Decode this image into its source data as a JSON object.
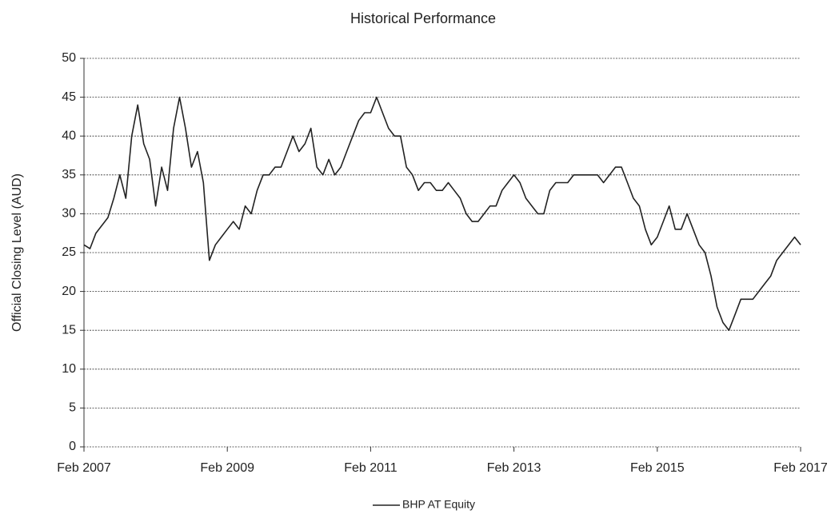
{
  "chart_data": {
    "type": "line",
    "title": "Historical Performance",
    "y_label": "Official Closing Level (AUD)",
    "x": [
      "2007-02",
      "2007-03",
      "2007-04",
      "2007-05",
      "2007-06",
      "2007-07",
      "2007-08",
      "2007-09",
      "2007-10",
      "2007-11",
      "2007-12",
      "2008-01",
      "2008-02",
      "2008-03",
      "2008-04",
      "2008-05",
      "2008-06",
      "2008-07",
      "2008-08",
      "2008-09",
      "2008-10",
      "2008-11",
      "2008-12",
      "2009-01",
      "2009-02",
      "2009-03",
      "2009-04",
      "2009-05",
      "2009-06",
      "2009-07",
      "2009-08",
      "2009-09",
      "2009-10",
      "2009-11",
      "2009-12",
      "2010-01",
      "2010-02",
      "2010-03",
      "2010-04",
      "2010-05",
      "2010-06",
      "2010-07",
      "2010-08",
      "2010-09",
      "2010-10",
      "2010-11",
      "2010-12",
      "2011-01",
      "2011-02",
      "2011-03",
      "2011-04",
      "2011-05",
      "2011-06",
      "2011-07",
      "2011-08",
      "2011-09",
      "2011-10",
      "2011-11",
      "2011-12",
      "2012-01",
      "2012-02",
      "2012-03",
      "2012-04",
      "2012-05",
      "2012-06",
      "2012-07",
      "2012-08",
      "2012-09",
      "2012-10",
      "2012-11",
      "2012-12",
      "2013-01",
      "2013-02",
      "2013-03",
      "2013-04",
      "2013-05",
      "2013-06",
      "2013-07",
      "2013-08",
      "2013-09",
      "2013-10",
      "2013-11",
      "2013-12",
      "2014-01",
      "2014-02",
      "2014-03",
      "2014-04",
      "2014-05",
      "2014-06",
      "2014-07",
      "2014-08",
      "2014-09",
      "2014-10",
      "2014-11",
      "2014-12",
      "2015-01",
      "2015-02",
      "2015-03",
      "2015-04",
      "2015-05",
      "2015-06",
      "2015-07",
      "2015-08",
      "2015-09",
      "2015-10",
      "2015-11",
      "2015-12",
      "2016-01",
      "2016-02",
      "2016-03",
      "2016-04",
      "2016-05",
      "2016-06",
      "2016-07",
      "2016-08",
      "2016-09",
      "2016-10",
      "2016-11",
      "2016-12",
      "2017-01",
      "2017-02"
    ],
    "series": [
      {
        "name": "BHP AT Equity",
        "color": "#222222",
        "values": [
          26,
          25.5,
          27.5,
          28.5,
          29.5,
          32,
          35,
          32,
          40,
          44,
          39,
          37,
          31,
          36,
          33,
          41,
          45,
          41,
          36,
          38,
          34,
          24,
          26,
          27,
          28,
          29,
          28,
          31,
          30,
          33,
          35,
          35,
          36,
          36,
          38,
          40,
          38,
          39,
          41,
          36,
          35,
          37,
          35,
          36,
          38,
          40,
          42,
          43,
          43,
          45,
          43,
          41,
          40,
          40,
          36,
          35,
          33,
          34,
          34,
          33,
          33,
          34,
          33,
          32,
          30,
          29,
          29,
          30,
          31,
          31,
          33,
          34,
          35,
          34,
          32,
          31,
          30,
          30,
          33,
          34,
          34,
          34,
          35,
          35,
          35,
          35,
          35,
          34,
          35,
          36,
          36,
          34,
          32,
          31,
          28,
          26,
          27,
          29,
          31,
          28,
          28,
          30,
          28,
          26,
          25,
          22,
          18,
          16,
          15,
          17,
          19,
          19,
          19,
          20,
          21,
          22,
          24,
          25,
          26,
          27,
          26
        ]
      }
    ],
    "xlim": [
      "2007-02",
      "2017-02"
    ],
    "xticks": [
      {
        "value": "2007-02",
        "label": "Feb 2007"
      },
      {
        "value": "2009-02",
        "label": "Feb 2009"
      },
      {
        "value": "2011-02",
        "label": "Feb 2011"
      },
      {
        "value": "2013-02",
        "label": "Feb 2013"
      },
      {
        "value": "2015-02",
        "label": "Feb 2015"
      },
      {
        "value": "2017-02",
        "label": "Feb 2017"
      }
    ],
    "ylim": [
      0,
      50
    ],
    "yticks": [
      0,
      5,
      10,
      15,
      20,
      25,
      30,
      35,
      40,
      45,
      50
    ],
    "grid": true,
    "legend": "bottom"
  }
}
